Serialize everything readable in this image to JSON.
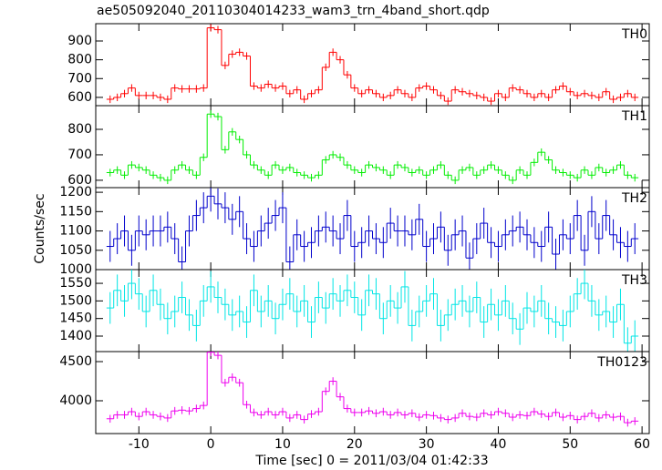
{
  "chart_data": {
    "type": "step",
    "title": "ae505092040_20110304014233_wam3_trn_4band_short.qdp",
    "x_label": "Time [sec] 0 = 2011/03/04 01:42:33",
    "y_label": "Counts/sec",
    "xlim": [
      -16,
      61
    ],
    "xticks": [
      -10,
      0,
      10,
      20,
      30,
      40,
      50,
      60
    ],
    "x": [
      -14,
      -13,
      -12,
      -11,
      -10,
      -9,
      -8,
      -7,
      -6,
      -5,
      -4,
      -3,
      -2,
      -1,
      0,
      1,
      2,
      3,
      4,
      5,
      6,
      7,
      8,
      9,
      10,
      11,
      12,
      13,
      14,
      15,
      16,
      17,
      18,
      19,
      20,
      21,
      22,
      23,
      24,
      25,
      26,
      27,
      28,
      29,
      30,
      31,
      32,
      33,
      34,
      35,
      36,
      37,
      38,
      39,
      40,
      41,
      42,
      43,
      44,
      45,
      46,
      47,
      48,
      49,
      50,
      51,
      52,
      53,
      54,
      55,
      56,
      57,
      58,
      59
    ],
    "panels": [
      {
        "name": "TH0",
        "color": "#ff0000",
        "ylim": [
          556,
          992
        ],
        "yticks": [
          600,
          700,
          800,
          900
        ],
        "error": 20,
        "values": [
          590,
          600,
          620,
          650,
          610,
          610,
          610,
          600,
          590,
          650,
          645,
          645,
          645,
          650,
          970,
          960,
          770,
          830,
          840,
          820,
          660,
          650,
          670,
          650,
          660,
          620,
          640,
          590,
          620,
          640,
          760,
          840,
          800,
          720,
          650,
          620,
          640,
          620,
          600,
          610,
          640,
          620,
          600,
          650,
          660,
          640,
          610,
          580,
          640,
          630,
          620,
          610,
          600,
          580,
          620,
          600,
          650,
          640,
          620,
          600,
          620,
          600,
          640,
          660,
          630,
          610,
          620,
          610,
          600,
          630,
          590,
          600,
          620,
          600
        ]
      },
      {
        "name": "TH1",
        "color": "#00ee00",
        "ylim": [
          571,
          893
        ],
        "yticks": [
          600,
          700,
          800
        ],
        "error": 15,
        "values": [
          630,
          640,
          620,
          660,
          650,
          640,
          620,
          610,
          600,
          640,
          660,
          640,
          620,
          690,
          860,
          850,
          720,
          790,
          760,
          700,
          660,
          640,
          620,
          660,
          640,
          650,
          630,
          620,
          610,
          620,
          680,
          700,
          690,
          660,
          640,
          630,
          660,
          650,
          640,
          620,
          660,
          650,
          630,
          640,
          620,
          640,
          660,
          620,
          600,
          640,
          650,
          620,
          640,
          660,
          640,
          620,
          600,
          640,
          620,
          670,
          710,
          680,
          640,
          630,
          620,
          610,
          640,
          620,
          650,
          630,
          640,
          660,
          620,
          610
        ]
      },
      {
        "name": "TH2",
        "color": "#0000cc",
        "ylim": [
          1000,
          1212
        ],
        "yticks": [
          1000,
          1050,
          1100,
          1150,
          1200
        ],
        "error": 40,
        "values": [
          1060,
          1080,
          1100,
          1050,
          1100,
          1090,
          1100,
          1100,
          1110,
          1080,
          1020,
          1100,
          1140,
          1160,
          1190,
          1170,
          1160,
          1130,
          1150,
          1080,
          1060,
          1100,
          1120,
          1140,
          1160,
          1020,
          1090,
          1060,
          1070,
          1100,
          1110,
          1100,
          1080,
          1140,
          1060,
          1070,
          1100,
          1080,
          1070,
          1120,
          1100,
          1100,
          1090,
          1130,
          1060,
          1080,
          1110,
          1050,
          1090,
          1100,
          1030,
          1080,
          1120,
          1070,
          1060,
          1090,
          1100,
          1110,
          1090,
          1070,
          1060,
          1110,
          1040,
          1090,
          1080,
          1140,
          1050,
          1150,
          1080,
          1140,
          1090,
          1070,
          1060,
          1080
        ]
      },
      {
        "name": "TH3",
        "color": "#00e5e5",
        "ylim": [
          1356,
          1589
        ],
        "yticks": [
          1400,
          1450,
          1500,
          1550
        ],
        "error": 45,
        "values": [
          1480,
          1530,
          1500,
          1550,
          1520,
          1470,
          1530,
          1490,
          1450,
          1470,
          1510,
          1460,
          1430,
          1500,
          1540,
          1510,
          1490,
          1460,
          1470,
          1440,
          1530,
          1470,
          1500,
          1450,
          1490,
          1520,
          1470,
          1500,
          1440,
          1510,
          1480,
          1520,
          1500,
          1530,
          1510,
          1460,
          1530,
          1520,
          1450,
          1500,
          1480,
          1540,
          1430,
          1470,
          1500,
          1520,
          1430,
          1460,
          1490,
          1500,
          1470,
          1510,
          1440,
          1490,
          1460,
          1500,
          1450,
          1420,
          1480,
          1470,
          1500,
          1450,
          1440,
          1430,
          1470,
          1520,
          1550,
          1500,
          1460,
          1470,
          1440,
          1490,
          1380,
          1400
        ]
      },
      {
        "name": "TH0123",
        "color": "#ee00ee",
        "ylim": [
          3581,
          4628
        ],
        "yticks": [
          4000,
          4500
        ],
        "error": 50,
        "values": [
          3770,
          3820,
          3820,
          3860,
          3800,
          3860,
          3820,
          3800,
          3780,
          3870,
          3880,
          3870,
          3900,
          3940,
          4620,
          4580,
          4230,
          4300,
          4230,
          3950,
          3850,
          3820,
          3860,
          3820,
          3860,
          3780,
          3820,
          3760,
          3830,
          3860,
          4120,
          4250,
          4050,
          3900,
          3850,
          3850,
          3870,
          3840,
          3860,
          3820,
          3850,
          3820,
          3840,
          3790,
          3820,
          3810,
          3780,
          3760,
          3780,
          3840,
          3800,
          3790,
          3840,
          3820,
          3860,
          3840,
          3790,
          3820,
          3810,
          3860,
          3830,
          3800,
          3850,
          3790,
          3810,
          3760,
          3800,
          3840,
          3780,
          3820,
          3790,
          3800,
          3720,
          3740
        ]
      }
    ]
  }
}
